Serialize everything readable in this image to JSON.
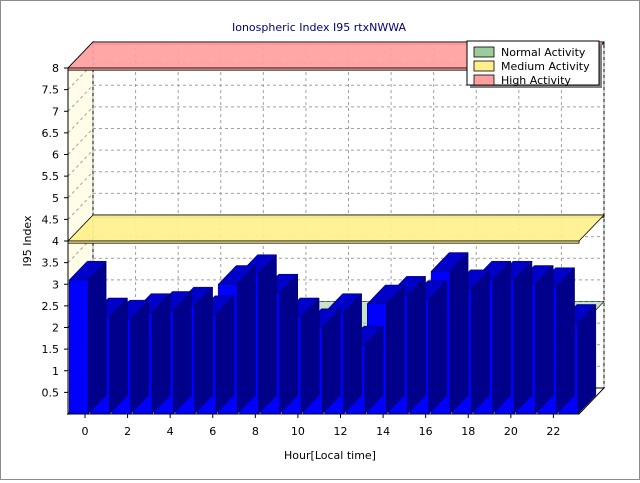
{
  "chart_data": {
    "type": "bar",
    "title": "Ionospheric Index I95 rtxNWWA",
    "xlabel": "Hour[Local time]",
    "ylabel": "I95 Index",
    "ylim": [
      0,
      8
    ],
    "y_ticks": [
      0.5,
      1,
      1.5,
      2,
      2.5,
      3,
      3.5,
      4,
      4.5,
      5,
      5.5,
      6,
      6.5,
      7,
      7.5,
      8
    ],
    "y_tick_labels": [
      "0.5",
      "1",
      "1.5",
      "2",
      "2.5",
      "3",
      "3.5",
      "4",
      "4.5",
      "5",
      "5.5",
      "6",
      "6.5",
      "7",
      "7.5",
      "8"
    ],
    "x_tick_labels": [
      "0",
      "2",
      "4",
      "6",
      "8",
      "10",
      "12",
      "14",
      "16",
      "18",
      "20",
      "22"
    ],
    "categories": [
      "0",
      "1",
      "2",
      "3",
      "4",
      "5",
      "6",
      "7",
      "8",
      "9",
      "10",
      "11",
      "12",
      "13",
      "14",
      "15",
      "16",
      "17",
      "18",
      "19",
      "20",
      "21",
      "22",
      "23"
    ],
    "values": [
      3.1,
      2.25,
      2.2,
      2.35,
      2.4,
      2.5,
      2.3,
      3.0,
      3.25,
      2.8,
      2.25,
      2.0,
      2.35,
      1.6,
      2.55,
      2.75,
      2.65,
      3.3,
      2.9,
      3.1,
      3.1,
      3.0,
      2.95,
      2.1
    ],
    "bands": [
      {
        "name": "Normal Activity",
        "from": 0,
        "to": 2,
        "color": "#9acd9a"
      },
      {
        "name": "Medium Activity",
        "from": 3.95,
        "to": 4,
        "color": "#fff08c"
      },
      {
        "name": "High Activity",
        "from": 7.95,
        "to": 8,
        "color": "#ffa0a0"
      }
    ],
    "legend": {
      "placement": "top-right",
      "entries": [
        {
          "name": "Normal Activity",
          "color": "#9acd9a"
        },
        {
          "name": "Medium Activity",
          "color": "#fff08c"
        },
        {
          "name": "High Activity",
          "color": "#ffa0a0"
        }
      ]
    },
    "colors": {
      "bar_front": "#0000ff",
      "bar_top": "#0000c8",
      "bar_side": "#00008b",
      "back_wall": "#ffffff",
      "side_wall": "#fffde8",
      "floor": "#ffffff",
      "grid": "#a0a0a0",
      "title": "#000080"
    },
    "grid": true,
    "three_d": true
  }
}
